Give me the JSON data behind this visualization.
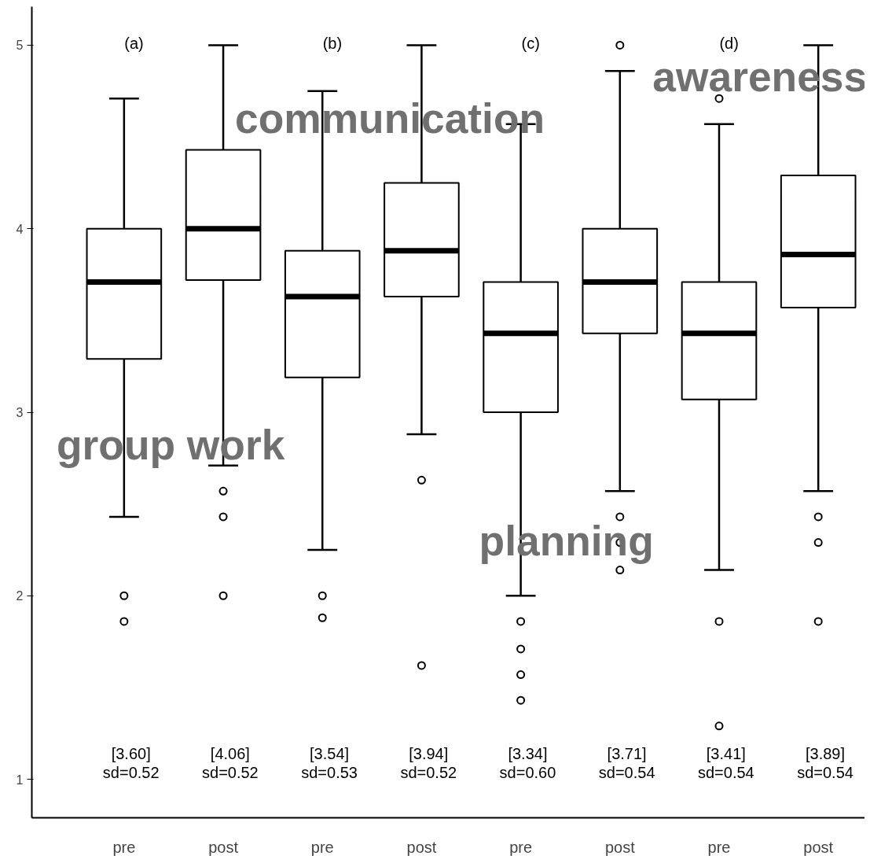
{
  "chart_data": {
    "type": "box",
    "categories": [
      "pre",
      "post",
      "pre",
      "post",
      "pre",
      "post",
      "pre",
      "post"
    ],
    "ylim": [
      0.79,
      5.21
    ],
    "yticks": [
      1,
      2,
      3,
      4,
      5
    ],
    "grid": false,
    "boxes": [
      {
        "low": 2.43,
        "q1": 3.29,
        "median": 3.71,
        "q3": 4.0,
        "high": 4.71,
        "outliers": [
          2.0,
          1.86
        ]
      },
      {
        "low": 2.71,
        "q1": 3.72,
        "median": 4.0,
        "q3": 4.43,
        "high": 5.0,
        "outliers": [
          2.57,
          2.43,
          2.0
        ]
      },
      {
        "low": 2.25,
        "q1": 3.19,
        "median": 3.63,
        "q3": 3.88,
        "high": 4.75,
        "outliers": [
          2.0,
          1.88
        ]
      },
      {
        "low": 2.88,
        "q1": 3.63,
        "median": 3.88,
        "q3": 4.25,
        "high": 5.0,
        "outliers": [
          2.63,
          1.62
        ]
      },
      {
        "low": 2.0,
        "q1": 3.0,
        "median": 3.43,
        "q3": 3.71,
        "high": 4.57,
        "outliers": [
          1.86,
          1.71,
          1.57,
          1.43
        ]
      },
      {
        "low": 2.57,
        "q1": 3.43,
        "median": 3.71,
        "q3": 4.0,
        "high": 4.86,
        "outliers": [
          5.0,
          2.43,
          2.29,
          2.14
        ]
      },
      {
        "low": 2.14,
        "q1": 3.07,
        "median": 3.43,
        "q3": 3.71,
        "high": 4.57,
        "outliers": [
          4.71,
          1.86,
          1.29
        ]
      },
      {
        "low": 2.57,
        "q1": 3.57,
        "median": 3.86,
        "q3": 4.29,
        "high": 5.0,
        "outliers": [
          2.43,
          2.29,
          1.86
        ]
      }
    ],
    "annotations": [
      "group work",
      "communication",
      "planning",
      "awareness",
      "(a)",
      "(b)",
      "(c)",
      "(d)",
      "[3.60]\nsd=0.52",
      "[4.06]\nsd=0.52",
      "[3.54]\nsd=0.53",
      "[3.94]\nsd=0.52",
      "[3.34]\nsd=0.60",
      "[3.71]\nsd=0.54",
      "[3.41]\nsd=0.54",
      "[3.89]\nsd=0.54"
    ]
  }
}
